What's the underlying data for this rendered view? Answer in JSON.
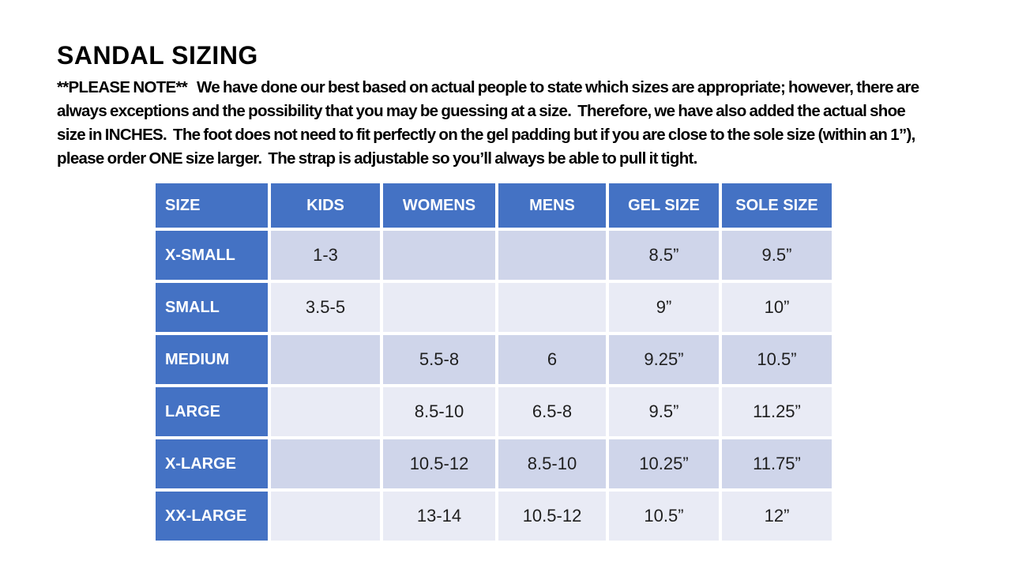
{
  "page": {
    "title": "SANDAL SIZING"
  },
  "note": {
    "lines": [
      "**PLEASE NOTE**   We have done our best based on actual people to state which sizes are appropriate; however, there are",
      "always exceptions and the possibility that you may be guessing at a size.  Therefore, we have also added the actual shoe",
      "size in INCHES.  The foot does not need to fit perfectly on the gel padding but if you are close to the sole size (within an 1”),",
      "please order ONE size larger.  The strap is adjustable so you’ll always be able to pull it tight."
    ]
  },
  "table": {
    "columns": [
      "SIZE",
      "KIDS",
      "WOMENS",
      "MENS",
      "GEL SIZE",
      "SOLE SIZE"
    ],
    "rows": [
      {
        "label": "X-SMALL",
        "kids": "1-3",
        "womens": "",
        "mens": "",
        "gel": "8.5”",
        "sole": "9.5”"
      },
      {
        "label": "SMALL",
        "kids": "3.5-5",
        "womens": "",
        "mens": "",
        "gel": "9”",
        "sole": "10”"
      },
      {
        "label": "MEDIUM",
        "kids": "",
        "womens": "5.5-8",
        "mens": "6",
        "gel": "9.25”",
        "sole": "10.5”"
      },
      {
        "label": "LARGE",
        "kids": "",
        "womens": "8.5-10",
        "mens": "6.5-8",
        "gel": "9.5”",
        "sole": "11.25”"
      },
      {
        "label": "X-LARGE",
        "kids": "",
        "womens": "10.5-12",
        "mens": "8.5-10",
        "gel": "10.25”",
        "sole": "11.75”"
      },
      {
        "label": "XX-LARGE",
        "kids": "",
        "womens": "13-14",
        "mens": "10.5-12",
        "gel": "10.5”",
        "sole": "12”"
      }
    ]
  },
  "colors": {
    "header-blue": "#4472C4",
    "band-dark": "#CFD5EA",
    "band-light": "#E9EBF5",
    "page-bg": "#FFFFFF",
    "cell-text": "#1F1F1F"
  }
}
